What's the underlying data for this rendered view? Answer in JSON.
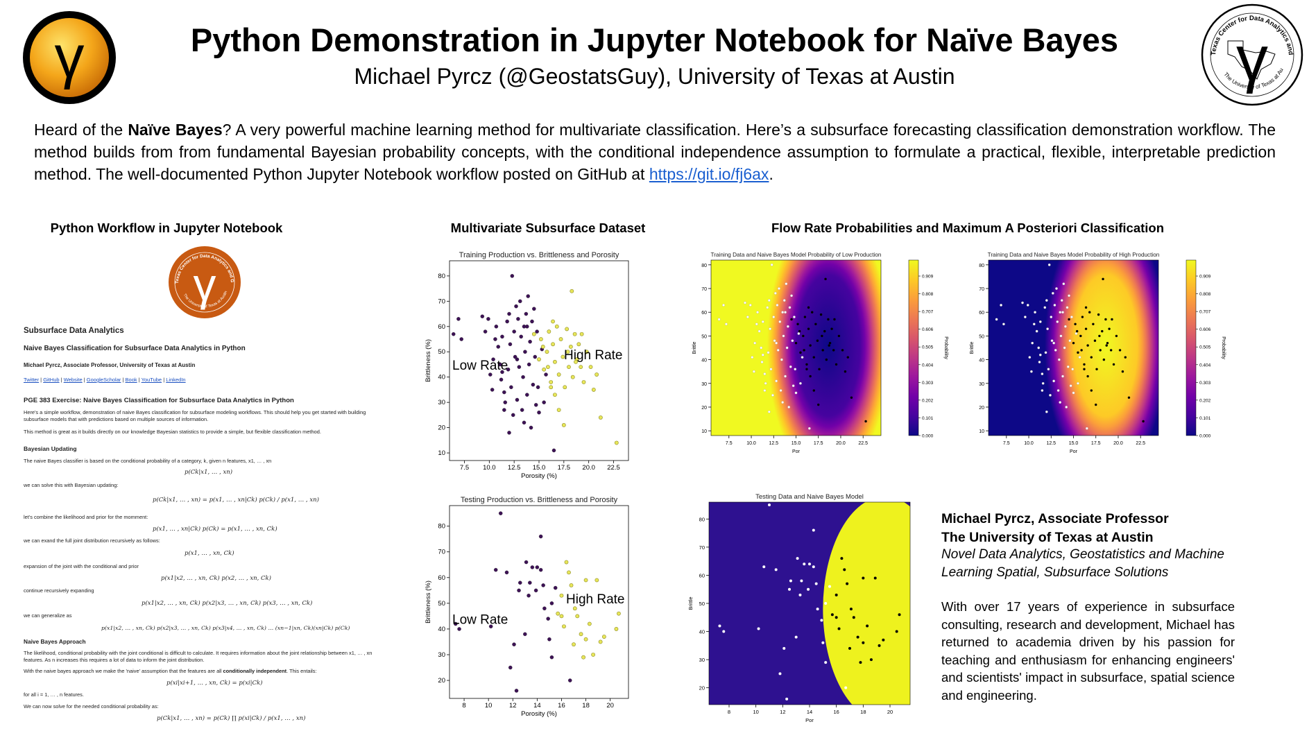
{
  "header": {
    "title": "Python Demonstration in Jupyter Notebook for Naïve Bayes",
    "subtitle": "Michael Pyrcz (@GeostatsGuy), University of Texas at Austin",
    "left_logo_glyph": "γ",
    "right_logo_text_top": "Texas Center for Data Analytics and Geostatistics",
    "right_logo_text_bottom": "The University of Texas at Austin"
  },
  "intro": {
    "p1": "Heard of the ",
    "bold": "Naïve Bayes",
    "p2": "? A very powerful machine learning method for multivariate classification. Here’s a subsurface forecasting classification demonstration workflow. The method builds from from fundamental Bayesian probability concepts, with the conditional independence assumption to formulate a practical, flexible, interpretable prediction method. The well-documented Python Jupyter Notebook workflow posted on GitHub at ",
    "link": "https://git.io/fj6ax",
    "p3": "."
  },
  "sections": {
    "workflow": "Python Workflow in Jupyter Notebook",
    "dataset": "Multivariate Subsurface Dataset",
    "probabilities": "Flow Rate Probabilities and Maximum A Posteriori Classification"
  },
  "notebook": {
    "logo_text_top": "Texas Center for Data Analytics and Geostatistics",
    "logo_text_bottom": "The University of Texas at Austin",
    "h1": "Subsurface Data Analytics",
    "h2": "Naive Bayes Classification for Subsurface Data Analytics in Python",
    "author": "Michael Pyrcz, Associate Professor, University of Texas at Austin",
    "links": [
      "Twitter",
      "GitHub",
      "Website",
      "GoogleScholar",
      "Book",
      "YouTube",
      "LinkedIn"
    ],
    "h3": "PGE 383 Exercise: Naive Bayes Classification for Subsurface Data Analytics in Python",
    "p1a": "Here's a simple workflow, demonstration of naive Bayes classification for subsurface modeling workflows. This should help you get started with building",
    "p1b": "subsurface models that with predictions based on multiple sources of information.",
    "p2": "This method is great as it builds directly on our knowledge Bayesian statistics to provide a simple, but flexible classification method.",
    "h4": "Bayesian Updating",
    "p3": "The naive Bayes classifier is based on the conditional probability of a category, k, given n features, x1, … , xn",
    "eq1": "p(Ck|x1, … , xn)",
    "p4": "we can solve this with Bayesian updating:",
    "eq2": "p(Ck|x1, … , xn) = p(x1, … , xn|Ck) p(Ck) / p(x1, … , xn)",
    "p5": "let's combine the likelihood and prior for the momment:",
    "eq3": "p(x1, … , xn|Ck) p(Ck) = p(x1, … , xn, Ck)",
    "p6": "we can exand the full joint distribution recursively as follows:",
    "eq4": "p(x1, … , xn, Ck)",
    "p7": "expansion of the joint with the conditional and prior",
    "eq5": "p(x1|x2, … , xn, Ck) p(x2, … , xn, Ck)",
    "p8": "continue recursively expanding",
    "eq6": "p(x1|x2, … , xn, Ck) p(x2|x3, … , xn, Ck) p(x3, … , xn, Ck)",
    "p9": "we can generalize as",
    "eq7": "p(x1|x2, … , xn, Ck) p(x2|x3, … , xn, Ck) p(x3|x4, … , xn, Ck) … (xn−1|xn, Ck)(xn|Ck) p(Ck)",
    "h5": "Naive Bayes Approach",
    "p10a": "The likelihood, conditional probability with the joint conditional is difficult to calculate. It requires information about the joint relationship between x1, … , xn",
    "p10b": "features. As n increases this requires a lot of data to inform the joint distribution.",
    "p11a": "With the naive bayes approach we make the 'naive' assumption that the features are all ",
    "p11b": "conditionally independent",
    "p11c": ". This entails:",
    "eq8": "p(xi|xi+1, … , xn, Ck) = p(xi|Ck)",
    "p12": "for all i = 1, … , n features.",
    "p13": "We can now solve for the needed conditional probability as:",
    "eq9": "p(Ck|x1, … , xn) = p(Ck) ∏ p(xi|Ck) / p(x1, … , xn)"
  },
  "bio": {
    "name": "Michael Pyrcz, Associate Professor",
    "org": "The University of Texas at Austin",
    "tag1": "Novel Data Analytics, Geostatistics and Machine",
    "tag2": "Learning Spatial, Subsurface Solutions",
    "body": "With over 17 years of experience in subsurface consulting, research and development, Michael has returned to academia driven by his passion for teaching and enthusiasm for enhancing engineers' and scientists' impact in subsurface, spatial science and engineering."
  },
  "chart_data": [
    {
      "id": "train",
      "type": "scatter",
      "title": "Training Production vs. Brittleness and Porosity",
      "xlabel": "Porosity (%)",
      "ylabel": "Brittleness (%)",
      "xlim": [
        6,
        24
      ],
      "ylim": [
        7,
        86
      ],
      "xticks": [
        7.5,
        10.0,
        12.5,
        15.0,
        17.5,
        20.0,
        22.5
      ],
      "yticks": [
        10,
        20,
        30,
        40,
        50,
        60,
        70,
        80
      ],
      "annotations": [
        "Low Rate",
        "High Rate"
      ],
      "colors": {
        "low": "#3d1255",
        "high": "#e8e65a"
      },
      "low": [
        [
          6.4,
          57
        ],
        [
          6.9,
          63
        ],
        [
          7.2,
          55
        ],
        [
          9.3,
          64
        ],
        [
          9.9,
          63
        ],
        [
          10.1,
          41
        ],
        [
          10.4,
          47
        ],
        [
          10.7,
          60
        ],
        [
          10.9,
          52
        ],
        [
          11.1,
          45
        ],
        [
          11.2,
          39
        ],
        [
          11.3,
          56
        ],
        [
          11.5,
          34
        ],
        [
          11.6,
          30
        ],
        [
          11.8,
          62
        ],
        [
          11.9,
          43
        ],
        [
          12.0,
          65
        ],
        [
          12.1,
          53
        ],
        [
          12.2,
          36
        ],
        [
          12.3,
          80
        ],
        [
          12.4,
          25
        ],
        [
          12.5,
          58
        ],
        [
          12.6,
          48
        ],
        [
          12.7,
          68
        ],
        [
          12.8,
          31
        ],
        [
          12.9,
          63
        ],
        [
          13.0,
          44
        ],
        [
          13.1,
          70
        ],
        [
          13.2,
          56
        ],
        [
          13.3,
          27
        ],
        [
          13.4,
          40
        ],
        [
          13.5,
          60
        ],
        [
          13.6,
          50
        ],
        [
          13.7,
          65
        ],
        [
          13.8,
          33
        ],
        [
          13.9,
          72
        ],
        [
          14.0,
          45
        ],
        [
          14.1,
          54
        ],
        [
          14.2,
          20
        ],
        [
          14.3,
          62
        ],
        [
          14.4,
          37
        ],
        [
          14.5,
          67
        ],
        [
          14.6,
          48
        ],
        [
          14.7,
          29
        ],
        [
          14.8,
          58
        ],
        [
          12.0,
          18
        ],
        [
          11.3,
          42
        ],
        [
          10.6,
          55
        ],
        [
          13.5,
          22
        ],
        [
          15.0,
          26
        ],
        [
          15.3,
          51
        ],
        [
          15.5,
          30
        ],
        [
          15.7,
          41
        ],
        [
          14.9,
          36
        ],
        [
          11.5,
          27
        ],
        [
          10.3,
          35
        ],
        [
          9.6,
          58
        ],
        [
          12.8,
          47
        ],
        [
          13.8,
          60
        ],
        [
          16.5,
          11
        ]
      ],
      "high": [
        [
          14.5,
          57
        ],
        [
          15.0,
          47
        ],
        [
          15.2,
          55
        ],
        [
          15.5,
          43
        ],
        [
          15.8,
          50
        ],
        [
          16.0,
          58
        ],
        [
          16.2,
          38
        ],
        [
          16.4,
          53
        ],
        [
          16.6,
          46
        ],
        [
          16.8,
          60
        ],
        [
          17.0,
          41
        ],
        [
          17.2,
          55
        ],
        [
          17.4,
          48
        ],
        [
          17.6,
          36
        ],
        [
          17.8,
          59
        ],
        [
          18.0,
          44
        ],
        [
          18.2,
          52
        ],
        [
          18.4,
          40
        ],
        [
          18.6,
          57
        ],
        [
          18.8,
          47
        ],
        [
          19.0,
          53
        ],
        [
          19.2,
          44
        ],
        [
          19.5,
          38
        ],
        [
          19.8,
          50
        ],
        [
          20.2,
          44
        ],
        [
          20.5,
          35
        ],
        [
          20.8,
          41
        ],
        [
          21.2,
          24
        ],
        [
          22.8,
          14
        ],
        [
          18.3,
          74
        ],
        [
          17.0,
          27
        ],
        [
          16.2,
          36
        ],
        [
          15.4,
          52
        ],
        [
          17.5,
          21
        ],
        [
          16.6,
          33
        ],
        [
          18.7,
          46
        ],
        [
          15.9,
          44
        ],
        [
          17.9,
          50
        ],
        [
          19.3,
          57
        ],
        [
          16.4,
          62
        ]
      ]
    },
    {
      "id": "test",
      "type": "scatter",
      "title": "Testing Production vs. Brittleness and Porosity",
      "xlabel": "Porosity (%)",
      "ylabel": "Brittleness (%)",
      "xlim": [
        6.8,
        21.5
      ],
      "ylim": [
        13,
        88
      ],
      "xticks": [
        8,
        10,
        12,
        14,
        16,
        18,
        20
      ],
      "yticks": [
        20,
        30,
        40,
        50,
        60,
        70,
        80
      ],
      "annotations": [
        "Low Rate",
        "High Rate"
      ],
      "colors": {
        "low": "#3d1255",
        "high": "#e8e65a"
      },
      "low": [
        [
          7.3,
          42
        ],
        [
          7.6,
          40
        ],
        [
          10.2,
          41
        ],
        [
          10.6,
          63
        ],
        [
          11.5,
          62
        ],
        [
          11.8,
          25
        ],
        [
          12.1,
          34
        ],
        [
          12.3,
          16
        ],
        [
          12.6,
          58
        ],
        [
          13.1,
          66
        ],
        [
          13.3,
          53
        ],
        [
          13.4,
          58
        ],
        [
          13.6,
          64
        ],
        [
          13.9,
          55
        ],
        [
          14.0,
          64
        ],
        [
          14.3,
          63
        ],
        [
          14.5,
          57
        ],
        [
          14.6,
          48
        ],
        [
          14.9,
          44
        ],
        [
          15.2,
          50
        ],
        [
          15.5,
          56
        ],
        [
          12.5,
          55
        ],
        [
          15.2,
          29
        ],
        [
          16.7,
          20
        ],
        [
          11.0,
          85
        ],
        [
          14.3,
          76
        ],
        [
          13.0,
          38
        ],
        [
          15.0,
          36
        ]
      ],
      "high": [
        [
          15.7,
          46
        ],
        [
          16.0,
          53
        ],
        [
          16.2,
          41
        ],
        [
          16.4,
          66
        ],
        [
          16.6,
          62
        ],
        [
          16.8,
          57
        ],
        [
          17.1,
          48
        ],
        [
          17.3,
          45
        ],
        [
          17.6,
          38
        ],
        [
          17.8,
          29
        ],
        [
          18.0,
          59
        ],
        [
          18.3,
          42
        ],
        [
          18.6,
          30
        ],
        [
          18.9,
          59
        ],
        [
          19.2,
          35
        ],
        [
          19.5,
          37
        ],
        [
          20.5,
          40
        ],
        [
          20.7,
          46
        ],
        [
          16.0,
          45
        ],
        [
          17.0,
          34
        ],
        [
          18.0,
          36
        ]
      ]
    },
    {
      "id": "prob-low",
      "type": "heatmap",
      "title": "Training Data and Naive Bayes Model Probability of Low Production",
      "xlabel": "Por",
      "ylabel": "Brittle",
      "colorbar_label": "Probability",
      "xlim": [
        5.5,
        24.5
      ],
      "ylim": [
        8,
        82
      ],
      "xticks": [
        7.5,
        10.0,
        12.5,
        15.0,
        17.5,
        20.0,
        22.5
      ],
      "yticks": [
        10,
        20,
        30,
        40,
        50,
        60,
        70,
        80
      ],
      "colorbar_ticks": [
        0.0,
        0.101,
        0.202,
        0.303,
        0.404,
        0.505,
        0.606,
        0.707,
        0.808,
        0.909
      ],
      "center": [
        18.6,
        46
      ],
      "radius": [
        4.4,
        37
      ],
      "probability_low_inside": 0.0,
      "probability_low_outside": 1.0
    },
    {
      "id": "prob-high",
      "type": "heatmap",
      "title": "Training Data and Naive Bayes Model Probability of High Production",
      "xlabel": "Por",
      "ylabel": "Brittle",
      "colorbar_label": "Probability",
      "xlim": [
        5.5,
        24.5
      ],
      "ylim": [
        8,
        82
      ],
      "xticks": [
        7.5,
        10.0,
        12.5,
        15.0,
        17.5,
        20.0,
        22.5
      ],
      "yticks": [
        10,
        20,
        30,
        40,
        50,
        60,
        70,
        80
      ],
      "colorbar_ticks": [
        0.0,
        0.101,
        0.202,
        0.303,
        0.404,
        0.505,
        0.606,
        0.707,
        0.808,
        0.909
      ],
      "center": [
        18.6,
        46
      ],
      "radius": [
        4.4,
        37
      ],
      "probability_high_inside": 1.0,
      "probability_high_outside": 0.0
    },
    {
      "id": "map",
      "type": "heatmap",
      "title": "Testing Data and Naive Bayes Model",
      "xlabel": "Por",
      "ylabel": "Brittle",
      "xlim": [
        6.5,
        21.5
      ],
      "ylim": [
        14,
        86
      ],
      "xticks": [
        8,
        10,
        12,
        14,
        16,
        18,
        20
      ],
      "yticks": [
        20,
        30,
        40,
        50,
        60,
        70,
        80
      ],
      "center": [
        19.6,
        48
      ],
      "radius": [
        4.6,
        40
      ],
      "colors": {
        "low": "#2e1190",
        "high": "#eef21e"
      }
    }
  ]
}
